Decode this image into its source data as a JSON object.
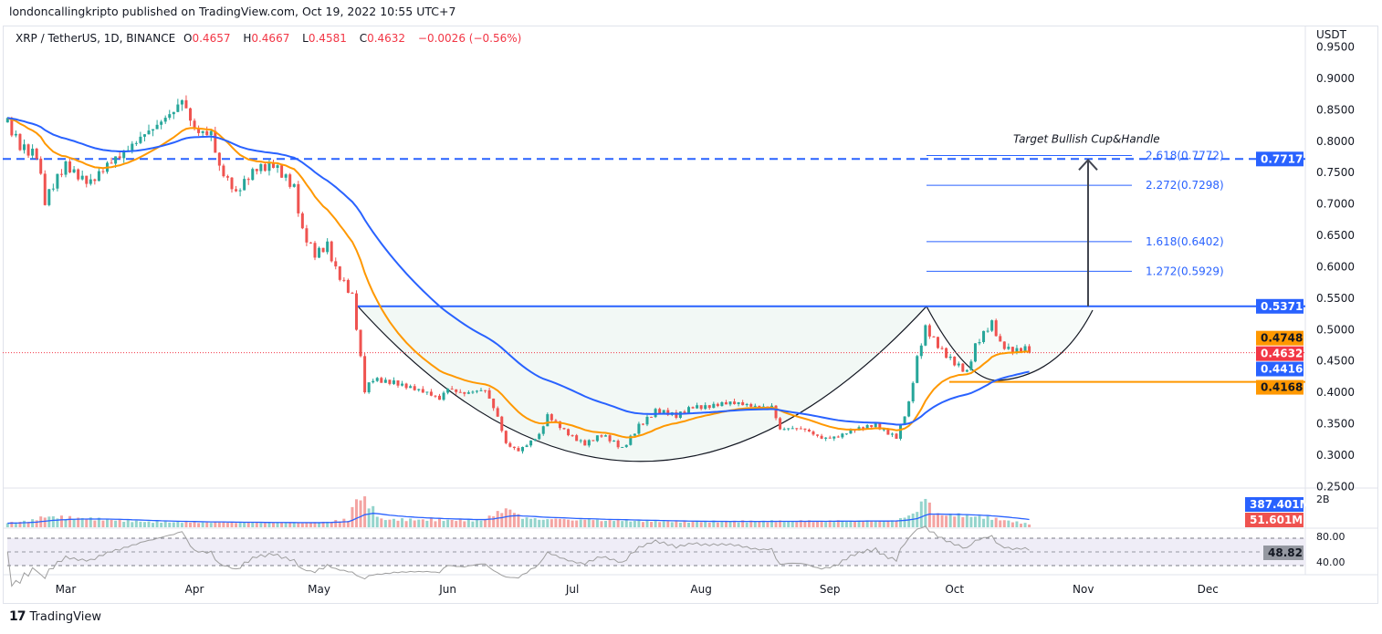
{
  "header": {
    "published": "londoncallingkripto published on TradingView.com, Oct 19, 2022 10:55 UTC+7"
  },
  "legend": {
    "symbol": "XRP / TetherUS, 1D, BINANCE",
    "o_label": "O",
    "o": "0.4657",
    "h_label": "H",
    "h": "0.4667",
    "l_label": "L",
    "l": "0.4581",
    "c_label": "C",
    "c": "0.4632",
    "change": "−0.0026 (−0.56%)"
  },
  "footer": {
    "brand": "TradingView"
  },
  "colors": {
    "up": "#26a69a",
    "down": "#ef5350",
    "ema_fast": "#ff9800",
    "ema_slow": "#2962ff",
    "line_blue": "#2962ff",
    "line_orange": "#ff9800",
    "rsi": "#9e9e9e"
  },
  "chart_data": {
    "type": "candlestick",
    "title": "XRP / TetherUS, 1D, BINANCE",
    "currency": "USDT",
    "ylim": [
      0.25,
      0.95
    ],
    "y_ticks": [
      "0.9500",
      "0.9000",
      "0.8500",
      "0.8000",
      "0.7500",
      "0.7000",
      "0.6500",
      "0.6000",
      "0.5500",
      "0.5000",
      "0.4500",
      "0.4000",
      "0.3500",
      "0.3000",
      "0.2500"
    ],
    "x_ticks": [
      {
        "label": "Mar",
        "day": 0
      },
      {
        "label": "Apr",
        "day": 31
      },
      {
        "label": "May",
        "day": 61
      },
      {
        "label": "Jun",
        "day": 92
      },
      {
        "label": "Jul",
        "day": 122
      },
      {
        "label": "Aug",
        "day": 153
      },
      {
        "label": "Sep",
        "day": 184
      },
      {
        "label": "Oct",
        "day": 214
      },
      {
        "label": "Nov",
        "day": 245
      },
      {
        "label": "Dec",
        "day": 275
      }
    ],
    "x_unit": "days since Mar 1, 2022",
    "close_keypoints": [
      [
        -14,
        0.83
      ],
      [
        -11,
        0.8
      ],
      [
        -7,
        0.78
      ],
      [
        -5,
        0.7
      ],
      [
        0,
        0.76
      ],
      [
        6,
        0.74
      ],
      [
        13,
        0.77
      ],
      [
        19,
        0.82
      ],
      [
        26,
        0.84
      ],
      [
        28,
        0.86
      ],
      [
        31,
        0.82
      ],
      [
        35,
        0.82
      ],
      [
        37,
        0.76
      ],
      [
        41,
        0.71
      ],
      [
        46,
        0.76
      ],
      [
        50,
        0.77
      ],
      [
        55,
        0.72
      ],
      [
        57,
        0.65
      ],
      [
        60,
        0.62
      ],
      [
        63,
        0.64
      ],
      [
        65,
        0.6
      ],
      [
        69,
        0.55
      ],
      [
        70,
        0.5
      ],
      [
        72,
        0.4
      ],
      [
        74,
        0.42
      ],
      [
        79,
        0.42
      ],
      [
        85,
        0.4
      ],
      [
        90,
        0.39
      ],
      [
        92,
        0.41
      ],
      [
        96,
        0.4
      ],
      [
        101,
        0.4
      ],
      [
        104,
        0.36
      ],
      [
        106,
        0.32
      ],
      [
        109,
        0.31
      ],
      [
        114,
        0.33
      ],
      [
        116,
        0.36
      ],
      [
        120,
        0.34
      ],
      [
        125,
        0.32
      ],
      [
        129,
        0.33
      ],
      [
        134,
        0.31
      ],
      [
        138,
        0.35
      ],
      [
        142,
        0.37
      ],
      [
        147,
        0.36
      ],
      [
        151,
        0.38
      ],
      [
        158,
        0.38
      ],
      [
        164,
        0.38
      ],
      [
        170,
        0.38
      ],
      [
        172,
        0.34
      ],
      [
        178,
        0.34
      ],
      [
        182,
        0.33
      ],
      [
        186,
        0.33
      ],
      [
        191,
        0.34
      ],
      [
        195,
        0.35
      ],
      [
        200,
        0.33
      ],
      [
        203,
        0.38
      ],
      [
        205,
        0.45
      ],
      [
        207,
        0.5
      ],
      [
        211,
        0.47
      ],
      [
        214,
        0.45
      ],
      [
        217,
        0.43
      ],
      [
        219,
        0.47
      ],
      [
        223,
        0.51
      ],
      [
        225,
        0.48
      ],
      [
        228,
        0.47
      ],
      [
        231,
        0.47
      ],
      [
        232,
        0.4632
      ]
    ],
    "volume_keypoints_M": [
      [
        -14,
        300
      ],
      [
        -8,
        450
      ],
      [
        -5,
        700
      ],
      [
        20,
        350
      ],
      [
        60,
        300
      ],
      [
        68,
        500
      ],
      [
        70,
        1900
      ],
      [
        72,
        1800
      ],
      [
        76,
        500
      ],
      [
        100,
        450
      ],
      [
        107,
        1300
      ],
      [
        110,
        600
      ],
      [
        150,
        350
      ],
      [
        200,
        450
      ],
      [
        203,
        800
      ],
      [
        205,
        1200
      ],
      [
        207,
        2000
      ],
      [
        209,
        900
      ],
      [
        220,
        700
      ],
      [
        232,
        200
      ]
    ],
    "price_labels": {
      "level_0_7717": {
        "value": "0.7717",
        "color": "#2962ff"
      },
      "resistance": {
        "value": "0.5371",
        "color": "#2962ff"
      },
      "ema_fast": {
        "value": "0.4748",
        "color": "#ff9800"
      },
      "last": {
        "value": "0.4632",
        "color": "#f23645"
      },
      "ema_slow": {
        "value": "0.4416",
        "color": "#2962ff"
      },
      "support": {
        "value": "0.4168",
        "color": "#ff9800"
      }
    },
    "fib_levels": [
      {
        "label": "2.618(0.7772)",
        "value": 0.7772
      },
      {
        "label": "2.272(0.7298)",
        "value": 0.7298
      },
      {
        "label": "1.618(0.6402)",
        "value": 0.6402
      },
      {
        "label": "1.272(0.5929)",
        "value": 0.5929
      }
    ],
    "annotation": "Target Bullish Cup&Handle",
    "volume": {
      "top_label": "2B",
      "ma_value": "387.401M",
      "value": "51.601M"
    },
    "rsi": {
      "value": "48.82",
      "upper_label": "80.00",
      "lower_label": "40.00",
      "bands": [
        70,
        30
      ]
    }
  }
}
